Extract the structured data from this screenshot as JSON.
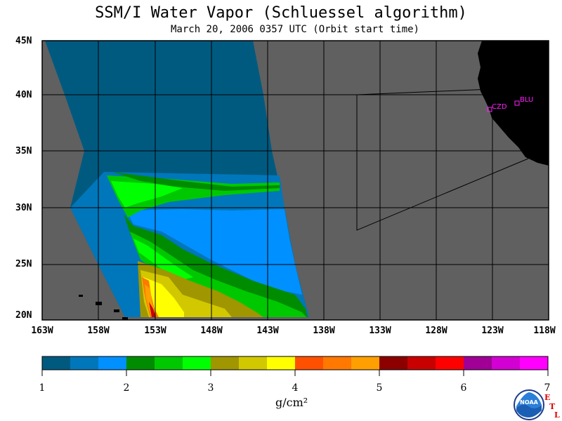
{
  "title": "SSM/I Water Vapor (Schluessel algorithm)",
  "subtitle": "March 20, 2006  0357 UTC  (Orbit start time)",
  "map": {
    "lat_labels": [
      "45N",
      "40N",
      "35N",
      "30N",
      "25N",
      "20N"
    ],
    "lon_labels": [
      "163W",
      "158W",
      "153W",
      "148W",
      "143W",
      "138W",
      "133W",
      "128W",
      "123W",
      "118W"
    ],
    "stations": [
      {
        "code": "CZD",
        "lat": 38.6,
        "lon": -123.2
      },
      {
        "code": "BLU",
        "lat": 39.3,
        "lon": -120.9
      }
    ],
    "colors": {
      "background": "#606060",
      "land": "#000000",
      "gridline": "#000000"
    }
  },
  "colorbar": {
    "ticks": [
      "1",
      "2",
      "3",
      "4",
      "5",
      "6",
      "7"
    ],
    "units": "g/cm²",
    "colors": [
      "#005a80",
      "#0077bb",
      "#0090ff",
      "#008c00",
      "#00c800",
      "#00ff00",
      "#a09600",
      "#d2c800",
      "#ffff00",
      "#ff5000",
      "#ff7800",
      "#ffa000",
      "#8c0000",
      "#c80000",
      "#ff0000",
      "#a00096",
      "#d200d2",
      "#ff00ff"
    ]
  },
  "logo": {
    "letters": [
      "E",
      "T",
      "L"
    ],
    "badge_text": "NOAA"
  }
}
